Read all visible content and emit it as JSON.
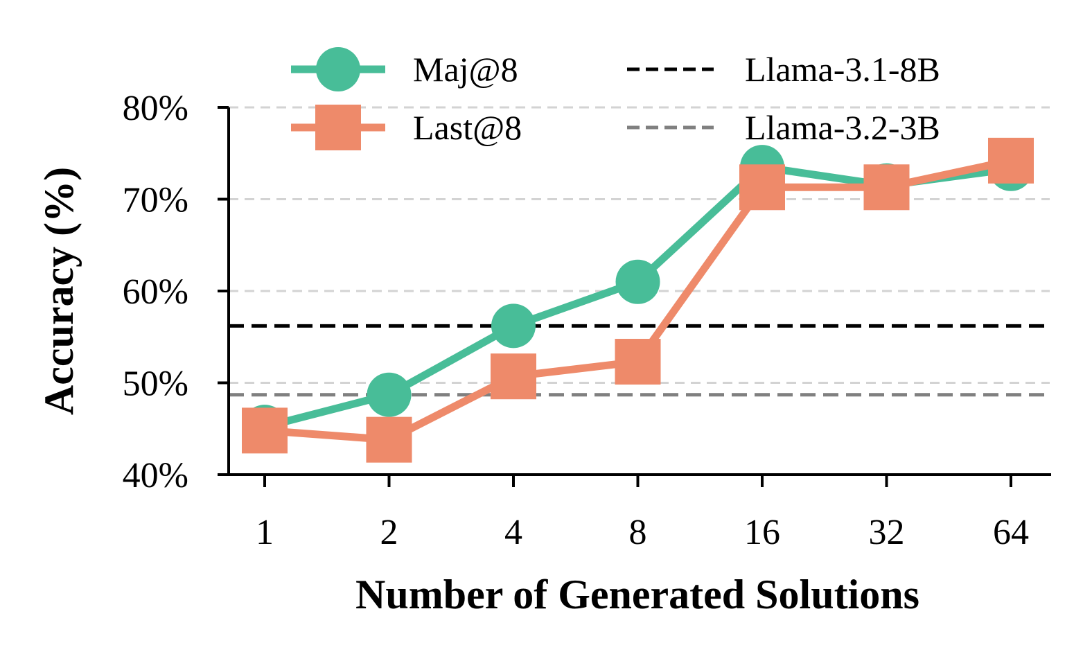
{
  "chart_data": {
    "type": "line",
    "title": "",
    "xlabel": "Number of Generated Solutions",
    "ylabel": "Accuracy (%)",
    "x": [
      "1",
      "2",
      "4",
      "8",
      "16",
      "32",
      "64"
    ],
    "x_scale": "categorical",
    "ylim": [
      40,
      80
    ],
    "yticks": [
      40,
      50,
      60,
      70,
      80
    ],
    "ytick_labels": [
      "40%",
      "50%",
      "60%",
      "70%",
      "80%"
    ],
    "grid": "horizontal dashed",
    "legend_position": "top",
    "series": [
      {
        "name": "Maj@8",
        "marker": "circle",
        "color": "#48bd98",
        "values": [
          45.2,
          48.7,
          56.2,
          61.0,
          73.5,
          71.5,
          73.3
        ]
      },
      {
        "name": "Last@8",
        "marker": "square",
        "color": "#ee8a6a",
        "values": [
          44.8,
          43.8,
          50.7,
          52.3,
          71.3,
          71.3,
          74.2
        ]
      }
    ],
    "reference_lines": [
      {
        "name": "Llama-3.1-8B",
        "value": 56.2,
        "color": "#000000"
      },
      {
        "name": "Llama-3.2-3B",
        "value": 48.7,
        "color": "#808080"
      }
    ]
  }
}
